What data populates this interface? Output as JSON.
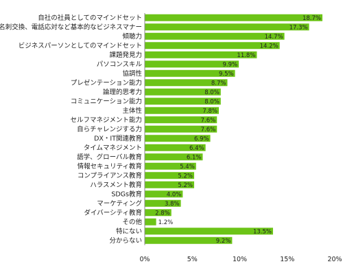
{
  "chart_data": {
    "type": "bar",
    "orientation": "horizontal",
    "categories": [
      "自社の社員としてのマインドセット",
      "名刺交換、電話応対など基本的なビジネスマナー",
      "傾聴力",
      "ビジネスパーソンとしてのマインドセット",
      "課題発見力",
      "パソコンスキル",
      "協調性",
      "プレゼンテーション能力",
      "論理的思考力",
      "コミュニケーション能力",
      "主体性",
      "セルフマネジメント能力",
      "自らチャレンジする力",
      "DX・IT関連教育",
      "タイムマネジメント",
      "語学、グローバル教育",
      "情報セキュリティ教育",
      "コンプライアンス教育",
      "ハラスメント教育",
      "SDGs教育",
      "マーケティング",
      "ダイバーシティ教育",
      "その他",
      "特にない",
      "分からない"
    ],
    "values": [
      18.7,
      17.3,
      14.7,
      14.2,
      11.8,
      9.9,
      9.5,
      8.7,
      8.0,
      8.0,
      7.8,
      7.6,
      7.6,
      6.9,
      6.4,
      6.1,
      5.4,
      5.2,
      5.2,
      4.0,
      3.8,
      2.8,
      1.2,
      13.5,
      9.2
    ],
    "value_labels": [
      "18.7%",
      "17.3%",
      "14.7%",
      "14.2%",
      "11.8%",
      "9.9%",
      "9.5%",
      "8.7%",
      "8.0%",
      "8.0%",
      "7.8%",
      "7.6%",
      "7.6%",
      "6.9%",
      "6.4%",
      "6.1%",
      "5.4%",
      "5.2%",
      "5.2%",
      "4.0%",
      "3.8%",
      "2.8%",
      "1.2%",
      "13.5%",
      "9.2%"
    ],
    "xticks": [
      0,
      5,
      10,
      15,
      20
    ],
    "xtick_labels": [
      "0%",
      "5%",
      "10%",
      "15%",
      "20%"
    ],
    "xlim": [
      0,
      20
    ],
    "bar_color": "#6cc417",
    "grid": false,
    "legend": "none"
  }
}
